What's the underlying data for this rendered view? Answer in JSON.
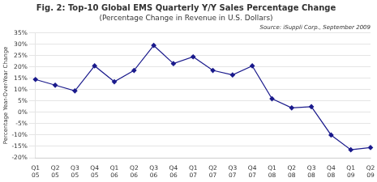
{
  "chart_data": {
    "type": "line",
    "title": "Fig. 2: Top-10 Global EMS Quarterly Y/Y Sales Percentage Change",
    "subtitle": "(Percentage Change in Revenue in U.S. Dollars)",
    "annotations": [
      "Source: iSuppli Corp., September 2009"
    ],
    "ylabel": "Percentage Year-Over-Year Change",
    "categories": [
      "Q1\n05",
      "Q2\n05",
      "Q3\n05",
      "Q4\n05",
      "Q1\n06",
      "Q2\n06",
      "Q3\n06",
      "Q4\n06",
      "Q1\n07",
      "Q2\n07",
      "Q3\n07",
      "Q4\n07",
      "Q1\n08",
      "Q2\n08",
      "Q3\n08",
      "Q4\n08",
      "Q1\n09",
      "Q2\n09"
    ],
    "values": [
      14.5,
      12.0,
      9.5,
      20.5,
      13.5,
      18.5,
      29.5,
      21.5,
      24.5,
      18.5,
      16.5,
      20.5,
      6.0,
      2.0,
      2.5,
      -10.0,
      -16.5,
      -15.5
    ],
    "color": "#1a1a8c",
    "marker": "diamond",
    "ylim": [
      -20,
      35
    ],
    "yticks": [
      {
        "value": -20,
        "label": "-20%"
      },
      {
        "value": -15,
        "label": "-15%"
      },
      {
        "value": -10,
        "label": "-10%"
      },
      {
        "value": -5,
        "label": "-5%"
      },
      {
        "value": 0,
        "label": "0%"
      },
      {
        "value": 5,
        "label": "5%"
      },
      {
        "value": 10,
        "label": "10%"
      },
      {
        "value": 15,
        "label": "15%"
      },
      {
        "value": 20,
        "label": "20%"
      },
      {
        "value": 25,
        "label": "25%"
      },
      {
        "value": 30,
        "label": "30%"
      },
      {
        "value": 35,
        "label": "35%"
      }
    ],
    "grid": true
  }
}
